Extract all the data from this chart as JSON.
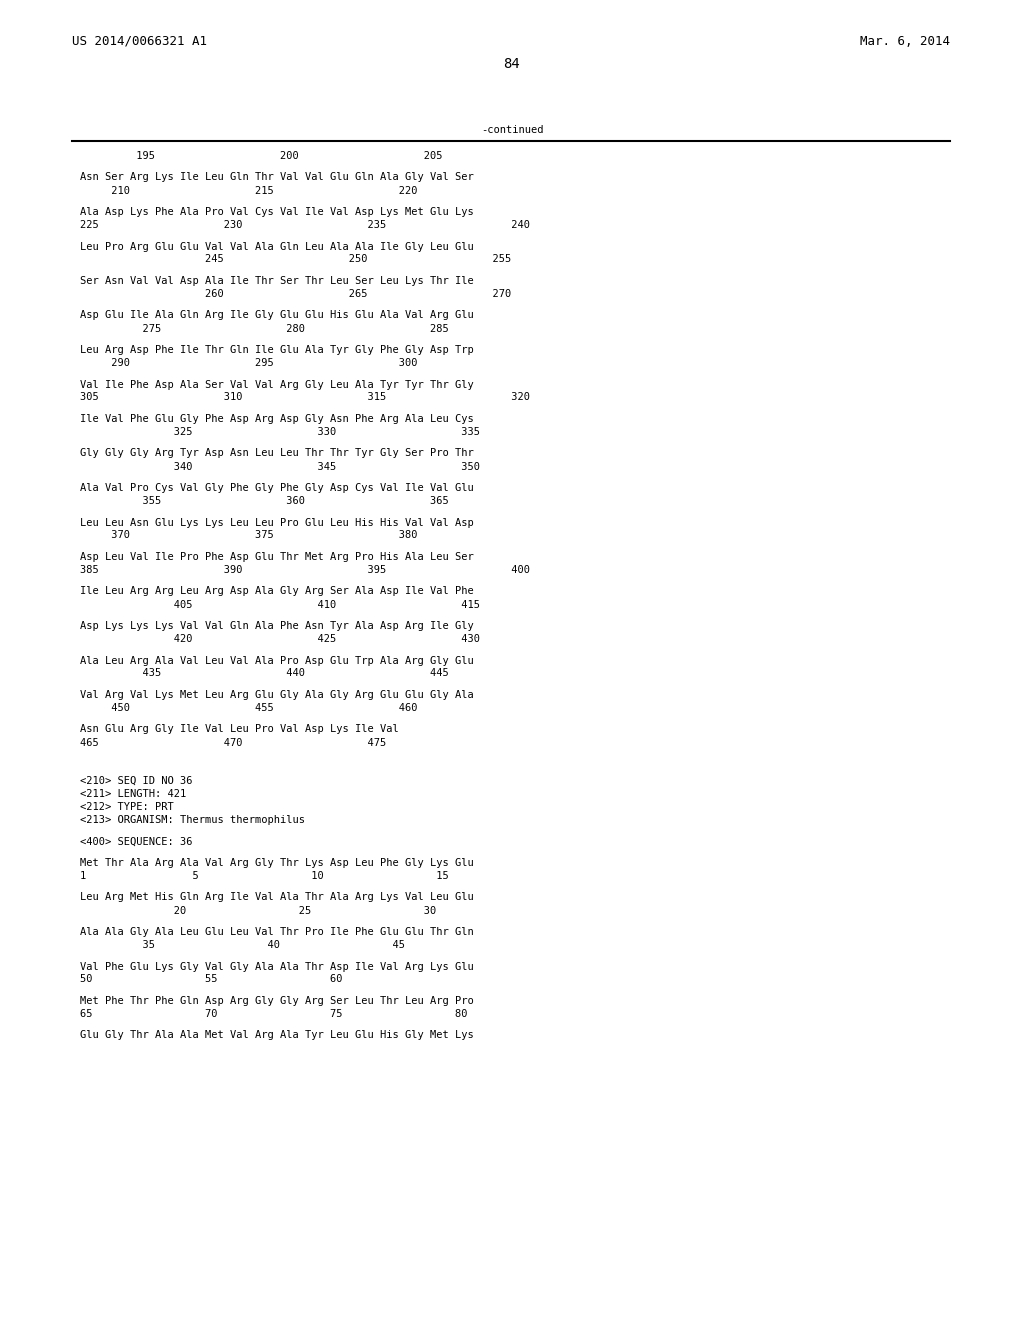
{
  "header_left": "US 2014/0066321 A1",
  "header_right": "Mar. 6, 2014",
  "page_number": "84",
  "continued_label": "-continued",
  "background_color": "#ffffff",
  "text_color": "#000000",
  "font_size": 7.5,
  "header_font_size": 9.0,
  "lines": [
    {
      "type": "ruler_numbers",
      "text": "         195                    200                    205"
    },
    {
      "type": "blank"
    },
    {
      "type": "sequence",
      "text": "Asn Ser Arg Lys Ile Leu Gln Thr Val Val Glu Gln Ala Gly Val Ser"
    },
    {
      "type": "numbers",
      "text": "     210                    215                    220"
    },
    {
      "type": "blank"
    },
    {
      "type": "sequence",
      "text": "Ala Asp Lys Phe Ala Pro Val Cys Val Ile Val Asp Lys Met Glu Lys"
    },
    {
      "type": "numbers",
      "text": "225                    230                    235                    240"
    },
    {
      "type": "blank"
    },
    {
      "type": "sequence",
      "text": "Leu Pro Arg Glu Glu Val Val Ala Gln Leu Ala Ala Ile Gly Leu Glu"
    },
    {
      "type": "numbers",
      "text": "                    245                    250                    255"
    },
    {
      "type": "blank"
    },
    {
      "type": "sequence",
      "text": "Ser Asn Val Val Asp Ala Ile Thr Ser Thr Leu Ser Leu Lys Thr Ile"
    },
    {
      "type": "numbers",
      "text": "                    260                    265                    270"
    },
    {
      "type": "blank"
    },
    {
      "type": "sequence",
      "text": "Asp Glu Ile Ala Gln Arg Ile Gly Glu Glu His Glu Ala Val Arg Glu"
    },
    {
      "type": "numbers",
      "text": "          275                    280                    285"
    },
    {
      "type": "blank"
    },
    {
      "type": "sequence",
      "text": "Leu Arg Asp Phe Ile Thr Gln Ile Glu Ala Tyr Gly Phe Gly Asp Trp"
    },
    {
      "type": "numbers",
      "text": "     290                    295                    300"
    },
    {
      "type": "blank"
    },
    {
      "type": "sequence",
      "text": "Val Ile Phe Asp Ala Ser Val Val Arg Gly Leu Ala Tyr Tyr Thr Gly"
    },
    {
      "type": "numbers",
      "text": "305                    310                    315                    320"
    },
    {
      "type": "blank"
    },
    {
      "type": "sequence",
      "text": "Ile Val Phe Glu Gly Phe Asp Arg Asp Gly Asn Phe Arg Ala Leu Cys"
    },
    {
      "type": "numbers",
      "text": "               325                    330                    335"
    },
    {
      "type": "blank"
    },
    {
      "type": "sequence",
      "text": "Gly Gly Gly Arg Tyr Asp Asn Leu Leu Thr Thr Tyr Gly Ser Pro Thr"
    },
    {
      "type": "numbers",
      "text": "               340                    345                    350"
    },
    {
      "type": "blank"
    },
    {
      "type": "sequence",
      "text": "Ala Val Pro Cys Val Gly Phe Gly Phe Gly Asp Cys Val Ile Val Glu"
    },
    {
      "type": "numbers",
      "text": "          355                    360                    365"
    },
    {
      "type": "blank"
    },
    {
      "type": "sequence",
      "text": "Leu Leu Asn Glu Lys Lys Leu Leu Pro Glu Leu His His Val Val Asp"
    },
    {
      "type": "numbers",
      "text": "     370                    375                    380"
    },
    {
      "type": "blank"
    },
    {
      "type": "sequence",
      "text": "Asp Leu Val Ile Pro Phe Asp Glu Thr Met Arg Pro His Ala Leu Ser"
    },
    {
      "type": "numbers",
      "text": "385                    390                    395                    400"
    },
    {
      "type": "blank"
    },
    {
      "type": "sequence",
      "text": "Ile Leu Arg Arg Leu Arg Asp Ala Gly Arg Ser Ala Asp Ile Val Phe"
    },
    {
      "type": "numbers",
      "text": "               405                    410                    415"
    },
    {
      "type": "blank"
    },
    {
      "type": "sequence",
      "text": "Asp Lys Lys Lys Val Val Gln Ala Phe Asn Tyr Ala Asp Arg Ile Gly"
    },
    {
      "type": "numbers",
      "text": "               420                    425                    430"
    },
    {
      "type": "blank"
    },
    {
      "type": "sequence",
      "text": "Ala Leu Arg Ala Val Leu Val Ala Pro Asp Glu Trp Ala Arg Gly Glu"
    },
    {
      "type": "numbers",
      "text": "          435                    440                    445"
    },
    {
      "type": "blank"
    },
    {
      "type": "sequence",
      "text": "Val Arg Val Lys Met Leu Arg Glu Gly Ala Gly Arg Glu Glu Gly Ala"
    },
    {
      "type": "numbers",
      "text": "     450                    455                    460"
    },
    {
      "type": "blank"
    },
    {
      "type": "sequence",
      "text": "Asn Glu Arg Gly Ile Val Leu Pro Val Asp Lys Ile Val"
    },
    {
      "type": "numbers",
      "text": "465                    470                    475"
    },
    {
      "type": "blank"
    },
    {
      "type": "blank"
    },
    {
      "type": "blank"
    },
    {
      "type": "meta",
      "text": "<210> SEQ ID NO 36"
    },
    {
      "type": "meta",
      "text": "<211> LENGTH: 421"
    },
    {
      "type": "meta",
      "text": "<212> TYPE: PRT"
    },
    {
      "type": "meta",
      "text": "<213> ORGANISM: Thermus thermophilus"
    },
    {
      "type": "blank"
    },
    {
      "type": "meta",
      "text": "<400> SEQUENCE: 36"
    },
    {
      "type": "blank"
    },
    {
      "type": "sequence",
      "text": "Met Thr Ala Arg Ala Val Arg Gly Thr Lys Asp Leu Phe Gly Lys Glu"
    },
    {
      "type": "numbers",
      "text": "1                 5                  10                  15"
    },
    {
      "type": "blank"
    },
    {
      "type": "sequence",
      "text": "Leu Arg Met His Gln Arg Ile Val Ala Thr Ala Arg Lys Val Leu Glu"
    },
    {
      "type": "numbers",
      "text": "               20                  25                  30"
    },
    {
      "type": "blank"
    },
    {
      "type": "sequence",
      "text": "Ala Ala Gly Ala Leu Glu Leu Val Thr Pro Ile Phe Glu Glu Thr Gln"
    },
    {
      "type": "numbers",
      "text": "          35                  40                  45"
    },
    {
      "type": "blank"
    },
    {
      "type": "sequence",
      "text": "Val Phe Glu Lys Gly Val Gly Ala Ala Thr Asp Ile Val Arg Lys Glu"
    },
    {
      "type": "numbers",
      "text": "50                  55                  60"
    },
    {
      "type": "blank"
    },
    {
      "type": "sequence",
      "text": "Met Phe Thr Phe Gln Asp Arg Gly Gly Arg Ser Leu Thr Leu Arg Pro"
    },
    {
      "type": "numbers",
      "text": "65                  70                  75                  80"
    },
    {
      "type": "blank"
    },
    {
      "type": "sequence",
      "text": "Glu Gly Thr Ala Ala Met Val Arg Ala Tyr Leu Glu His Gly Met Lys"
    }
  ]
}
